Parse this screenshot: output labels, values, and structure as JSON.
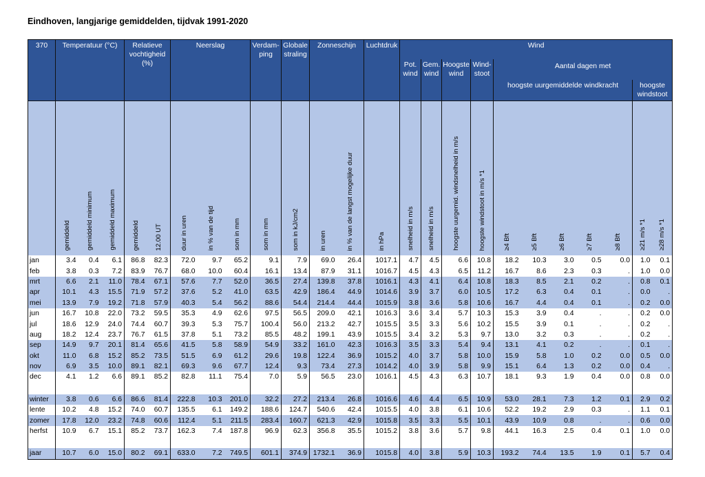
{
  "title": "Eindhoven, langjarige gemiddelden, tijdvak 1991-2020",
  "header": {
    "station": "370",
    "temperatuur": "Temperatuur (°C)",
    "vochtigheid": "Relatieve vochtigheid (%)",
    "neerslag": "Neerslag",
    "verdamping": "Verdam- ping",
    "straling": "Globale straling",
    "zonneschijn": "Zonneschijn",
    "luchtdruk": "Luchtdruk",
    "wind": "Wind",
    "pot_wind": "Pot. wind",
    "gem_wind": "Gem. wind",
    "hoogste_wind": "Hoogste wind",
    "windstoot": "Wind- stoot",
    "aantal_dagen": "Aantal dagen met",
    "windkracht": "hoogste uurgemiddelde windkracht",
    "hoogste_windstoot": "hoogste windstoot"
  },
  "sublabels": [
    "gemiddeld",
    "gemiddeld minimum",
    "gemiddeld maximum",
    "gemiddeld",
    "12.00 UT",
    "duur in uren",
    "in % van de tijd",
    "som in mm",
    "som in mm",
    "som in kJ/cm2",
    "in uren",
    "in % van de langst mogelijke duur",
    "in hPa",
    "snelheid in m/s",
    "snelheid in m/s",
    "hoogste uurgemid. windsnelheid in m/s",
    "hoogste windstoot in m/s *1",
    "≥4 Bft",
    "≥5 Bft",
    "≥6 Bft",
    "≥7 Bft",
    "≥8 Bft",
    "≥21 m/s *1",
    "≥28 m/s *1"
  ],
  "rows": [
    {
      "label": "jan",
      "highlight": false,
      "values": [
        "3.4",
        "0.4",
        "6.1",
        "86.8",
        "82.3",
        "72.0",
        "9.7",
        "65.2",
        "9.1",
        "7.9",
        "69.0",
        "26.4",
        "1017.1",
        "4.7",
        "4.5",
        "6.6",
        "10.8",
        "18.2",
        "10.3",
        "3.0",
        "0.5",
        "0.0",
        "1.0",
        "0.1"
      ]
    },
    {
      "label": "feb",
      "highlight": false,
      "values": [
        "3.8",
        "0.3",
        "7.2",
        "83.9",
        "76.7",
        "68.0",
        "10.0",
        "60.4",
        "16.1",
        "13.4",
        "87.9",
        "31.1",
        "1016.7",
        "4.5",
        "4.3",
        "6.5",
        "11.2",
        "16.7",
        "8.6",
        "2.3",
        "0.3",
        ".",
        "1.0",
        "0.0"
      ]
    },
    {
      "label": "mrt",
      "highlight": true,
      "values": [
        "6.6",
        "2.1",
        "11.0",
        "78.4",
        "67.1",
        "57.6",
        "7.7",
        "52.0",
        "36.5",
        "27.4",
        "139.8",
        "37.8",
        "1016.1",
        "4.3",
        "4.1",
        "6.4",
        "10.8",
        "18.3",
        "8.5",
        "2.1",
        "0.2",
        ".",
        "0.8",
        "0.1"
      ]
    },
    {
      "label": "apr",
      "highlight": true,
      "values": [
        "10.1",
        "4.3",
        "15.5",
        "71.9",
        "57.2",
        "37.6",
        "5.2",
        "41.0",
        "63.5",
        "42.9",
        "186.4",
        "44.9",
        "1014.6",
        "3.9",
        "3.7",
        "6.0",
        "10.5",
        "17.2",
        "6.3",
        "0.4",
        "0.1",
        ".",
        "0.0",
        "."
      ]
    },
    {
      "label": "mei",
      "highlight": true,
      "values": [
        "13.9",
        "7.9",
        "19.2",
        "71.8",
        "57.9",
        "40.3",
        "5.4",
        "56.2",
        "88.6",
        "54.4",
        "214.4",
        "44.4",
        "1015.9",
        "3.8",
        "3.6",
        "5.8",
        "10.6",
        "16.7",
        "4.4",
        "0.4",
        "0.1",
        ".",
        "0.2",
        "0.0"
      ]
    },
    {
      "label": "jun",
      "highlight": false,
      "values": [
        "16.7",
        "10.8",
        "22.0",
        "73.2",
        "59.5",
        "35.3",
        "4.9",
        "62.6",
        "97.5",
        "56.5",
        "209.0",
        "42.1",
        "1016.3",
        "3.6",
        "3.4",
        "5.7",
        "10.3",
        "15.3",
        "3.9",
        "0.4",
        ".",
        ".",
        "0.2",
        "0.0"
      ]
    },
    {
      "label": "jul",
      "highlight": false,
      "values": [
        "18.6",
        "12.9",
        "24.0",
        "74.4",
        "60.7",
        "39.3",
        "5.3",
        "75.7",
        "100.4",
        "56.0",
        "213.2",
        "42.7",
        "1015.5",
        "3.5",
        "3.3",
        "5.6",
        "10.2",
        "15.5",
        "3.9",
        "0.1",
        ".",
        ".",
        "0.2",
        "."
      ]
    },
    {
      "label": "aug",
      "highlight": false,
      "values": [
        "18.2",
        "12.4",
        "23.7",
        "76.7",
        "61.5",
        "37.8",
        "5.1",
        "73.2",
        "85.5",
        "48.2",
        "199.1",
        "43.9",
        "1015.5",
        "3.4",
        "3.2",
        "5.3",
        "9.7",
        "13.0",
        "3.2",
        "0.3",
        ".",
        ".",
        "0.2",
        "."
      ]
    },
    {
      "label": "sep",
      "highlight": true,
      "values": [
        "14.9",
        "9.7",
        "20.1",
        "81.4",
        "65.6",
        "41.5",
        "5.8",
        "58.9",
        "54.9",
        "33.2",
        "161.0",
        "42.3",
        "1016.3",
        "3.5",
        "3.3",
        "5.4",
        "9.4",
        "13.1",
        "4.1",
        "0.2",
        ".",
        ".",
        "0.1",
        "."
      ]
    },
    {
      "label": "okt",
      "highlight": true,
      "values": [
        "11.0",
        "6.8",
        "15.2",
        "85.2",
        "73.5",
        "51.5",
        "6.9",
        "61.2",
        "29.6",
        "19.8",
        "122.4",
        "36.9",
        "1015.2",
        "4.0",
        "3.7",
        "5.8",
        "10.0",
        "15.9",
        "5.8",
        "1.0",
        "0.2",
        "0.0",
        "0.5",
        "0.0"
      ]
    },
    {
      "label": "nov",
      "highlight": true,
      "values": [
        "6.9",
        "3.5",
        "10.0",
        "89.1",
        "82.1",
        "69.3",
        "9.6",
        "67.7",
        "12.4",
        "9.3",
        "73.4",
        "27.3",
        "1014.2",
        "4.0",
        "3.9",
        "5.8",
        "9.9",
        "15.1",
        "6.4",
        "1.3",
        "0.2",
        "0.0",
        "0.4",
        "."
      ]
    },
    {
      "label": "dec",
      "highlight": false,
      "values": [
        "4.1",
        "1.2",
        "6.6",
        "89.1",
        "85.2",
        "82.8",
        "11.1",
        "75.4",
        "7.0",
        "5.9",
        "56.5",
        "23.0",
        "1016.1",
        "4.5",
        "4.3",
        "6.3",
        "10.7",
        "18.1",
        "9.3",
        "1.9",
        "0.4",
        "0.0",
        "0.8",
        "0.0"
      ]
    },
    {
      "blank": true
    },
    {
      "label": "winter",
      "highlight": true,
      "values": [
        "3.8",
        "0.6",
        "6.6",
        "86.6",
        "81.4",
        "222.8",
        "10.3",
        "201.0",
        "32.2",
        "27.2",
        "213.4",
        "26.8",
        "1016.6",
        "4.6",
        "4.4",
        "6.5",
        "10.9",
        "53.0",
        "28.1",
        "7.3",
        "1.2",
        "0.1",
        "2.9",
        "0.2"
      ]
    },
    {
      "label": "lente",
      "highlight": false,
      "values": [
        "10.2",
        "4.8",
        "15.2",
        "74.0",
        "60.7",
        "135.5",
        "6.1",
        "149.2",
        "188.6",
        "124.7",
        "540.6",
        "42.4",
        "1015.5",
        "4.0",
        "3.8",
        "6.1",
        "10.6",
        "52.2",
        "19.2",
        "2.9",
        "0.3",
        ".",
        "1.1",
        "0.1"
      ]
    },
    {
      "label": "zomer",
      "highlight": true,
      "values": [
        "17.8",
        "12.0",
        "23.2",
        "74.8",
        "60.6",
        "112.4",
        "5.1",
        "211.5",
        "283.4",
        "160.7",
        "621.3",
        "42.9",
        "1015.8",
        "3.5",
        "3.3",
        "5.5",
        "10.1",
        "43.9",
        "10.9",
        "0.8",
        ".",
        ".",
        "0.6",
        "0.0"
      ]
    },
    {
      "label": "herfst",
      "highlight": false,
      "values": [
        "10.9",
        "6.7",
        "15.1",
        "85.2",
        "73.7",
        "162.3",
        "7.4",
        "187.8",
        "96.9",
        "62.3",
        "356.8",
        "35.5",
        "1015.2",
        "3.8",
        "3.6",
        "5.7",
        "9.8",
        "44.1",
        "16.3",
        "2.5",
        "0.4",
        "0.1",
        "1.0",
        "0.0"
      ]
    },
    {
      "blank": true
    },
    {
      "label": "jaar",
      "highlight": true,
      "values": [
        "10.7",
        "6.0",
        "15.0",
        "80.2",
        "69.1",
        "633.0",
        "7.2",
        "749.5",
        "601.1",
        "374.9",
        "1732.1",
        "36.9",
        "1015.8",
        "4.0",
        "3.8",
        "5.9",
        "10.3",
        "193.2",
        "74.4",
        "13.5",
        "1.9",
        "0.1",
        "5.7",
        "0.4"
      ]
    }
  ]
}
